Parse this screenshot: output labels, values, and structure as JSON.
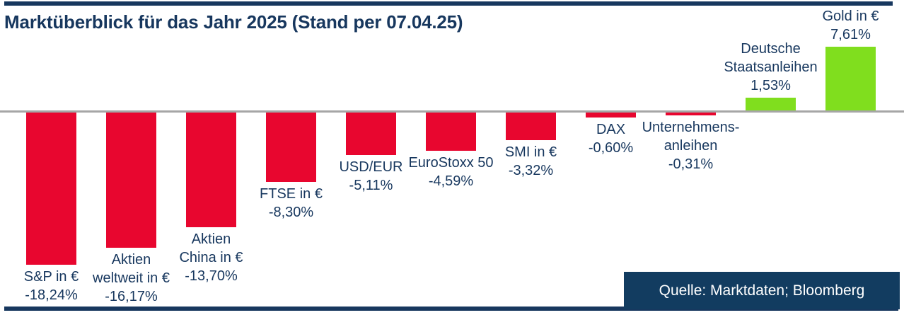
{
  "title": "Marktüberblick für das Jahr 2025 (Stand per 07.04.25)",
  "source_label": "Quelle: Marktdaten; Bloomberg",
  "colors": {
    "navy": "#17375E",
    "source_box": "#123C60",
    "negative_bar": "#E8062F",
    "positive_bar": "#80DE1E",
    "zero_line": "#A6A6A6"
  },
  "chart_data": {
    "type": "bar",
    "unit": "%",
    "baseline": 0,
    "ylim": [
      -18.24,
      7.61
    ],
    "grid": false,
    "legend": false,
    "value_label_format": "german-decimal-comma",
    "items": [
      {
        "name": "S&P in €",
        "label_lines": [
          "S&P in €"
        ],
        "value": -18.24,
        "value_label": "-18,24%"
      },
      {
        "name": "Aktien weltweit in €",
        "label_lines": [
          "Aktien",
          "weltweit in €"
        ],
        "value": -16.17,
        "value_label": "-16,17%"
      },
      {
        "name": "Aktien China in €",
        "label_lines": [
          "Aktien",
          "China in €"
        ],
        "value": -13.7,
        "value_label": "-13,70%"
      },
      {
        "name": "FTSE in €",
        "label_lines": [
          "FTSE in €"
        ],
        "value": -8.3,
        "value_label": "-8,30%"
      },
      {
        "name": "USD/EUR",
        "label_lines": [
          "USD/EUR"
        ],
        "value": -5.11,
        "value_label": "-5,11%"
      },
      {
        "name": "EuroStoxx 50",
        "label_lines": [
          "EuroStoxx 50"
        ],
        "value": -4.59,
        "value_label": "-4,59%"
      },
      {
        "name": "SMI in €",
        "label_lines": [
          "SMI in €"
        ],
        "value": -3.32,
        "value_label": "-3,32%"
      },
      {
        "name": "DAX",
        "label_lines": [
          "DAX"
        ],
        "value": -0.6,
        "value_label": "-0,60%"
      },
      {
        "name": "Unternehmensanleihen",
        "label_lines": [
          "Unternehmens-",
          "anleihen"
        ],
        "value": -0.31,
        "value_label": "-0,31%"
      },
      {
        "name": "Deutsche Staatsanleihen",
        "label_lines": [
          "Deutsche",
          "Staatsanleihen"
        ],
        "value": 1.53,
        "value_label": "1,53%"
      },
      {
        "name": "Gold in €",
        "label_lines": [
          "Gold in €"
        ],
        "value": 7.61,
        "value_label": "7,61%"
      }
    ]
  }
}
